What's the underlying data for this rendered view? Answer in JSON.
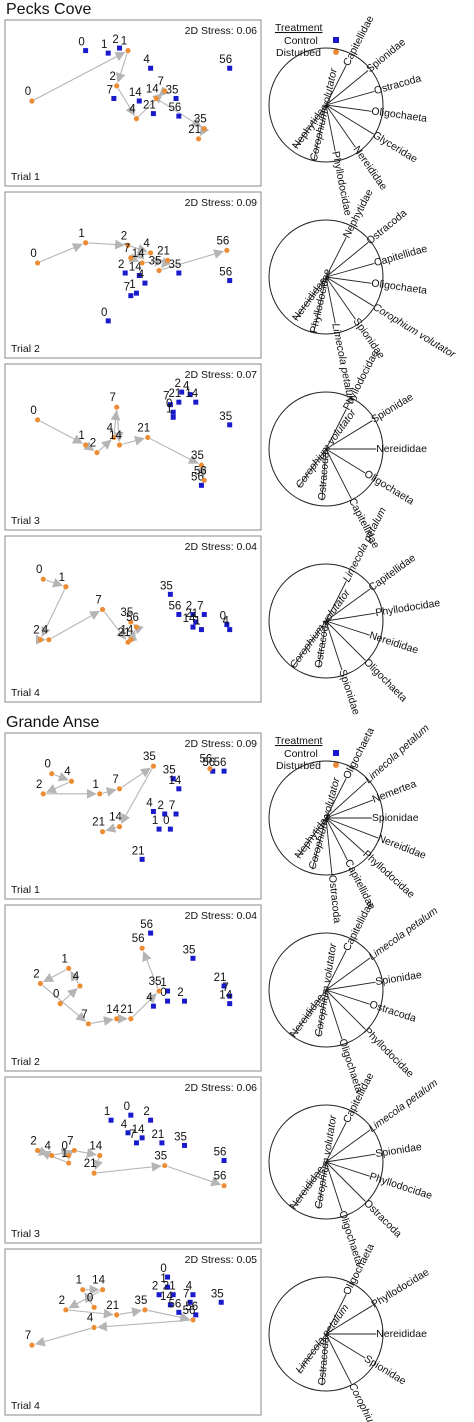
{
  "colors": {
    "control": "#1a1acd",
    "disturbed": "#ec8d35",
    "arrow": "#b5b5b5",
    "frame": "#888888"
  },
  "chart_data": [
    {
      "type": "scatter",
      "site": "Pecks Cove",
      "treatment_legend": {
        "title": "Treatment",
        "entries": [
          "Control",
          "Disturbed"
        ]
      },
      "panels": [
        {
          "trial": "Trial 1",
          "stress_label": "2D Stress: 0.06",
          "control": [
            [
              "0",
              2.5,
              4.5
            ],
            [
              "1",
              3.3,
              4.4
            ],
            [
              "2",
              3.7,
              4.6
            ],
            [
              "4",
              4.8,
              3.8
            ],
            [
              "56",
              7.6,
              3.8
            ],
            [
              "7",
              3.5,
              2.6
            ],
            [
              "14",
              4.4,
              2.5
            ],
            [
              "35",
              5.7,
              2.6
            ],
            [
              "21",
              4.9,
              2.0
            ],
            [
              "56",
              5.8,
              1.9
            ]
          ],
          "disturbed": [
            [
              "0",
              0.6,
              2.5
            ],
            [
              "1",
              4.0,
              4.5
            ],
            [
              "2",
              3.6,
              3.1
            ],
            [
              "4",
              4.3,
              1.8
            ],
            [
              "7",
              5.3,
              2.9
            ],
            [
              "14",
              5.0,
              2.6
            ],
            [
              "35",
              6.7,
              1.4
            ],
            [
              "21",
              6.5,
              1.0
            ]
          ],
          "disturbed_path": [
            "0",
            "1",
            "2",
            "4",
            "7",
            "14",
            "35",
            "21"
          ],
          "vectors": [
            "Capitellidae",
            "Spionidae",
            "Ostracoda",
            "Oligochaeta",
            "Glyceridae",
            "Nereididae",
            "Phyllodocidae",
            "Corophium volutator",
            "Nephytidae"
          ]
        },
        {
          "trial": "Trial 2",
          "stress_label": "2D Stress: 0.09",
          "control": [
            [
              "2",
              3.9,
              2.5
            ],
            [
              "14",
              4.4,
              2.4
            ],
            [
              "4",
              4.6,
              2.1
            ],
            [
              "1",
              4.3,
              1.7
            ],
            [
              "7",
              4.1,
              1.6
            ],
            [
              "35",
              5.8,
              2.5
            ],
            [
              "56",
              7.6,
              2.2
            ],
            [
              "0",
              3.3,
              0.6
            ]
          ],
          "disturbed": [
            [
              "0",
              0.8,
              2.9
            ],
            [
              "1",
              2.5,
              3.7
            ],
            [
              "2",
              4.0,
              3.6
            ],
            [
              "4",
              4.8,
              3.3
            ],
            [
              "7",
              4.1,
              3.1
            ],
            [
              "14",
              4.5,
              2.9
            ],
            [
              "21",
              5.4,
              3.0
            ],
            [
              "35",
              5.1,
              2.6
            ],
            [
              "56",
              7.5,
              3.4
            ]
          ],
          "disturbed_path": [
            "0",
            "1",
            "2",
            "4",
            "7",
            "14",
            "21",
            "35",
            "56"
          ],
          "vectors": [
            "Nephytidae",
            "Ostracoda",
            "Capitellidae",
            "Oligochaeta",
            "Corophium volutator",
            "Spionidae",
            "Limecola petalum",
            "Phyllodocidae",
            "Nereididae"
          ]
        },
        {
          "trial": "Trial 3",
          "stress_label": "2D Stress: 0.07",
          "control": [
            [
              "2",
              5.9,
              4.6
            ],
            [
              "4",
              6.2,
              4.5
            ],
            [
              "21",
              5.8,
              4.2
            ],
            [
              "14",
              6.4,
              4.2
            ],
            [
              "7",
              5.5,
              4.1
            ],
            [
              "0",
              5.6,
              3.8
            ],
            [
              "1",
              5.6,
              3.6
            ],
            [
              "35",
              7.6,
              3.3
            ],
            [
              "56",
              6.6,
              0.9
            ]
          ],
          "disturbed": [
            [
              "0",
              0.8,
              3.5
            ],
            [
              "7",
              3.6,
              4.0
            ],
            [
              "4",
              3.5,
              2.8
            ],
            [
              "21",
              4.7,
              2.8
            ],
            [
              "1",
              2.5,
              2.5
            ],
            [
              "14",
              3.7,
              2.5
            ],
            [
              "2",
              2.9,
              2.2
            ],
            [
              "35",
              6.6,
              1.7
            ],
            [
              "56",
              6.7,
              1.1
            ]
          ],
          "disturbed_path": [
            "0",
            "1",
            "2",
            "4",
            "7",
            "14",
            "21",
            "35",
            "56"
          ],
          "vectors": [
            "Phyllodocidae",
            "Spionidae",
            "Nereididae",
            "Oligochaeta",
            "Capitellidae",
            "Ostracoda",
            "Corophium volutator"
          ]
        },
        {
          "trial": "Trial 4",
          "stress_label": "2D Stress: 0.04",
          "control": [
            [
              "35",
              5.5,
              3.4
            ],
            [
              "56",
              5.8,
              2.6
            ],
            [
              "2",
              6.3,
              2.6
            ],
            [
              "7",
              6.7,
              2.6
            ],
            [
              "21",
              6.4,
              2.3
            ],
            [
              "14",
              6.3,
              2.1
            ],
            [
              "1",
              6.6,
              2.0
            ],
            [
              "0",
              7.5,
              2.2
            ],
            [
              "4",
              7.6,
              2.0
            ]
          ],
          "disturbed": [
            [
              "0",
              1.0,
              4.0
            ],
            [
              "1",
              1.8,
              3.7
            ],
            [
              "2",
              0.9,
              1.6
            ],
            [
              "4",
              1.2,
              1.6
            ],
            [
              "7",
              3.1,
              2.8
            ],
            [
              "35",
              4.1,
              2.3
            ],
            [
              "56",
              4.3,
              2.1
            ],
            [
              "21",
              4.0,
              1.5
            ],
            [
              "14",
              4.1,
              1.6
            ]
          ],
          "disturbed_path": [
            "0",
            "1",
            "2",
            "4",
            "7",
            "21",
            "14",
            "56",
            "35"
          ],
          "vectors": [
            "Limecola petalum",
            "Capitellidae",
            "Phyllodocidae",
            "Nereididae",
            "Oligochaeta",
            "Spionidae",
            "Ostracoda",
            "Corophium volutator"
          ]
        }
      ]
    },
    {
      "type": "scatter",
      "site": "Grande Anse",
      "treatment_legend": {
        "title": "Treatment",
        "entries": [
          "Control",
          "Disturbed"
        ]
      },
      "panels": [
        {
          "trial": "Trial 1",
          "stress_label": "2D Stress: 0.09",
          "control": [
            [
              "35",
              5.6,
              3.9
            ],
            [
              "56",
              7.0,
              4.2
            ],
            [
              "56",
              7.4,
              4.2
            ],
            [
              "14",
              5.8,
              3.5
            ],
            [
              "4",
              4.9,
              2.6
            ],
            [
              "2",
              5.3,
              2.5
            ],
            [
              "7",
              5.7,
              2.5
            ],
            [
              "1",
              5.1,
              1.9
            ],
            [
              "0",
              5.5,
              1.9
            ],
            [
              "21",
              4.5,
              0.7
            ]
          ],
          "disturbed": [
            [
              "0",
              1.3,
              4.1
            ],
            [
              "4",
              2.0,
              3.8
            ],
            [
              "2",
              1.0,
              3.3
            ],
            [
              "1",
              3.0,
              3.3
            ],
            [
              "7",
              3.7,
              3.5
            ],
            [
              "35",
              4.9,
              4.4
            ],
            [
              "56",
              6.9,
              4.3
            ],
            [
              "14",
              3.7,
              2.0
            ],
            [
              "21",
              3.1,
              1.8
            ]
          ],
          "disturbed_path": [
            "0",
            "4",
            "2",
            "1",
            "7",
            "35",
            "14",
            "21"
          ],
          "vectors": [
            "Oligochaeta",
            "Limecola petalum",
            "Nemertea",
            "Spionidae",
            "Nereididae",
            "Phyllodocidae",
            "Capitellidae",
            "Ostracoda",
            "Corophium volutator",
            "Nephytidae"
          ]
        },
        {
          "trial": "Trial 2",
          "stress_label": "2D Stress: 0.04",
          "control": [
            [
              "56",
              4.8,
              4.6
            ],
            [
              "35",
              6.3,
              3.6
            ],
            [
              "1",
              5.4,
              2.3
            ],
            [
              "21",
              7.4,
              2.5
            ],
            [
              "7",
              7.6,
              2.1
            ],
            [
              "14",
              7.6,
              1.8
            ],
            [
              "0",
              5.4,
              1.9
            ],
            [
              "2",
              6.0,
              1.9
            ],
            [
              "4",
              4.9,
              1.7
            ]
          ],
          "disturbed": [
            [
              "0",
              1.6,
              1.8
            ],
            [
              "1",
              1.9,
              3.2
            ],
            [
              "2",
              0.9,
              2.6
            ],
            [
              "4",
              2.3,
              2.5
            ],
            [
              "7",
              2.6,
              1.0
            ],
            [
              "14",
              3.6,
              1.2
            ],
            [
              "21",
              4.1,
              1.2
            ],
            [
              "35",
              5.1,
              2.3
            ],
            [
              "56",
              4.5,
              4.0
            ]
          ],
          "disturbed_path": [
            "0",
            "4",
            "1",
            "2",
            "7",
            "14",
            "21",
            "35",
            "56"
          ],
          "vectors": [
            "Capitellidae",
            "Limecola petalum",
            "Spionidae",
            "Ostracoda",
            "Phyllodocidae",
            "Oligochaeta",
            "Corophium volutator",
            "Nereididae"
          ]
        },
        {
          "trial": "Trial 3",
          "stress_label": "2D Stress: 0.06",
          "control": [
            [
              "1",
              3.4,
              4.0
            ],
            [
              "0",
              4.1,
              4.2
            ],
            [
              "2",
              4.8,
              4.0
            ],
            [
              "4",
              4.0,
              3.5
            ],
            [
              "14",
              4.5,
              3.3
            ],
            [
              "7",
              4.3,
              3.1
            ],
            [
              "21",
              5.2,
              3.1
            ],
            [
              "35",
              6.0,
              3.0
            ],
            [
              "56",
              7.4,
              2.4
            ]
          ],
          "disturbed": [
            [
              "0",
              1.9,
              2.6
            ],
            [
              "2",
              0.8,
              2.8
            ],
            [
              "4",
              1.3,
              2.6
            ],
            [
              "7",
              2.1,
              2.8
            ],
            [
              "1",
              1.9,
              2.3
            ],
            [
              "14",
              3.0,
              2.6
            ],
            [
              "21",
              2.8,
              1.9
            ],
            [
              "35",
              5.3,
              2.2
            ],
            [
              "56",
              7.4,
              1.4
            ]
          ],
          "disturbed_path": [
            "0",
            "1",
            "2",
            "4",
            "7",
            "14",
            "21",
            "35",
            "56"
          ],
          "vectors": [
            "Capitellidae",
            "Limecola petalum",
            "Spionidae",
            "Phyllodocidae",
            "Ostracoda",
            "Oligochaeta",
            "Corophium volutator",
            "Nereididae"
          ]
        },
        {
          "trial": "Trial 4",
          "stress_label": "2D Stress: 0.05",
          "control": [
            [
              "0",
              5.4,
              4.6
            ],
            [
              "1",
              5.4,
              4.2
            ],
            [
              "2",
              5.1,
              3.9
            ],
            [
              "21",
              5.6,
              3.9
            ],
            [
              "4",
              6.3,
              3.9
            ],
            [
              "14",
              5.5,
              3.5
            ],
            [
              "7",
              6.2,
              3.6
            ],
            [
              "35",
              7.3,
              3.6
            ],
            [
              "56",
              5.8,
              3.2
            ],
            [
              "56",
              6.4,
              3.1
            ]
          ],
          "disturbed": [
            [
              "0",
              2.8,
              3.4
            ],
            [
              "1",
              2.4,
              4.1
            ],
            [
              "14",
              3.1,
              4.1
            ],
            [
              "2",
              1.8,
              3.3
            ],
            [
              "21",
              3.6,
              3.1
            ],
            [
              "35",
              4.6,
              3.3
            ],
            [
              "4",
              2.8,
              2.6
            ],
            [
              "7",
              0.6,
              1.9
            ],
            [
              "56",
              6.3,
              2.9
            ]
          ],
          "disturbed_path": [
            "0",
            "1",
            "14",
            "2",
            "21",
            "35",
            "56",
            "4",
            "7"
          ],
          "vectors": [
            "Oligochaeta",
            "Phyllodocidae",
            "Nereididae",
            "Spionidae",
            "Corophium volutator",
            "Ostracoda",
            "Limecola petalum"
          ]
        }
      ]
    }
  ]
}
